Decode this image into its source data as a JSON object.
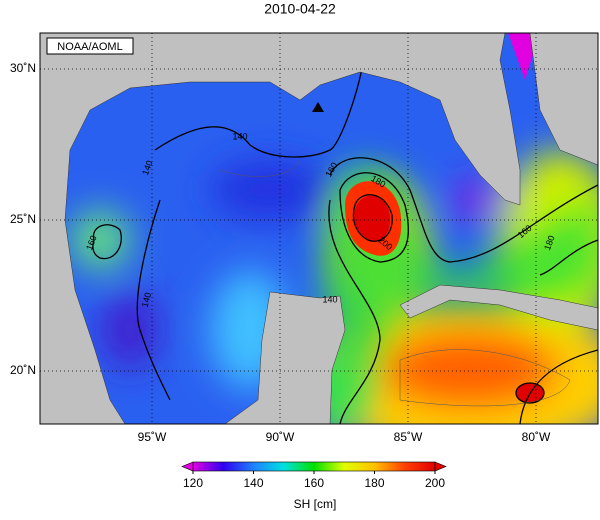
{
  "title": "2010-04-22",
  "credit": "NOAA/AOML",
  "lat_labels": [
    {
      "value": 30,
      "label": "30˚N"
    },
    {
      "value": 25,
      "label": "25˚N"
    },
    {
      "value": 20,
      "label": "20˚N"
    }
  ],
  "lon_labels": [
    {
      "value": -95,
      "label": "95˚W"
    },
    {
      "value": -90,
      "label": "90˚W"
    },
    {
      "value": -85,
      "label": "85˚W"
    },
    {
      "value": -80,
      "label": "80˚W"
    }
  ],
  "colorbar": {
    "label": "SH [cm]",
    "lim": [
      120,
      200
    ],
    "ticks": [
      120,
      140,
      160,
      180,
      200
    ],
    "colors": [
      "#e000e0",
      "#3000f0",
      "#2080ff",
      "#00e0e0",
      "#00e000",
      "#e0ff00",
      "#ffc000",
      "#ff4000",
      "#e00000"
    ]
  },
  "contour_labels": [
    "140",
    "140",
    "140",
    "140",
    "160",
    "160",
    "180",
    "200",
    "160",
    "180"
  ]
}
